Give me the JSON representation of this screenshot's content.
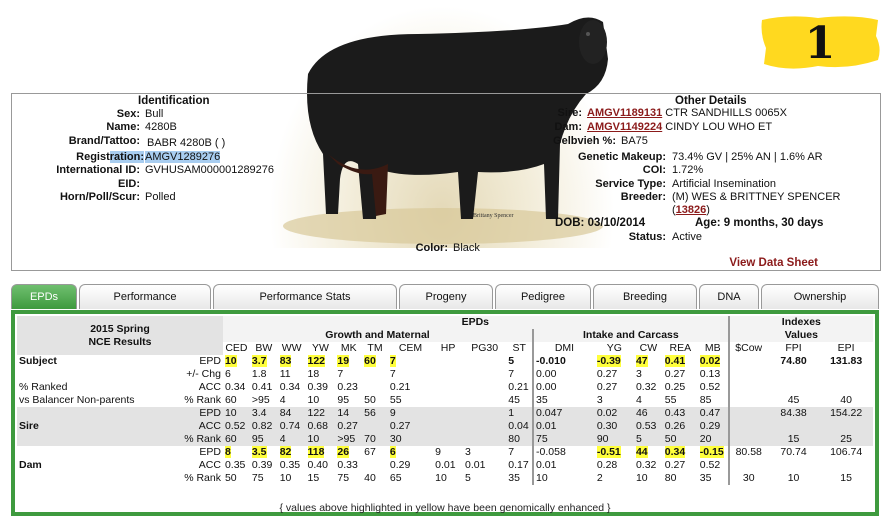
{
  "badge": {
    "number": "1"
  },
  "identification": {
    "title": "Identification",
    "fields": [
      {
        "label": "Sex:",
        "value": "Bull"
      },
      {
        "label": "Name:",
        "value": "4280B"
      },
      {
        "label": "Brand/Tattoo:",
        "value": "BABR 4280B ( )"
      },
      {
        "label_a": "Regist",
        "label_b": "ration:",
        "value": "AMGV1289276"
      },
      {
        "label": "International ID:",
        "value": "GVHUSAM000001289276"
      },
      {
        "label": "EID:",
        "value": ""
      },
      {
        "label": "Horn/Poll/Scur:",
        "value": "Polled"
      }
    ],
    "color_label": "Color:",
    "color_value": "Black"
  },
  "photo": {
    "credit": "Brittany Spencer"
  },
  "details": {
    "title": "Other Details",
    "sire_label": "Sire:",
    "sire_id": "AMGV1189131",
    "sire_name": "CTR SANDHILLS 0065X",
    "dam_label": "Dam:",
    "dam_id": "AMGV1149224",
    "dam_name": "CINDY LOU WHO ET",
    "gelbvieh_label": "Gelbvieh %:",
    "gelbvieh_value": "BA75",
    "genetic_label": "Genetic Makeup:",
    "genetic_value": "73.4% GV | 25% AN | 1.6% AR",
    "coi_label": "COI:",
    "coi_value": "1.72%",
    "service_label": "Service Type:",
    "service_value": "Artificial Insemination",
    "breeder_label": "Breeder:",
    "breeder_value": "(M) WES & BRITTNEY SPENCER",
    "breeder_id_open": "(",
    "breeder_id": "13826",
    "breeder_id_close": ")",
    "dob": "DOB: 03/10/2014",
    "age": "Age: 9 months, 30 days",
    "status_label": "Status:",
    "status_value": "Active",
    "view_sheet": "View Data Sheet"
  },
  "tabs": [
    "EPDs",
    "Performance",
    "Performance Stats",
    "Progeny",
    "Pedigree",
    "Breeding",
    "DNA",
    "Ownership"
  ],
  "epd": {
    "title_line1": "2015 Spring",
    "title_line2": "NCE Results",
    "group_epds": "EPDs",
    "group_growth": "Growth and Maternal",
    "group_intake": "Intake and Carcass",
    "group_indexes_1": "Indexes",
    "group_indexes_2": "Values",
    "cols": [
      "CED",
      "BW",
      "WW",
      "YW",
      "MK",
      "TM",
      "CEM",
      "HP",
      "PG30",
      "ST",
      "DMI",
      "YG",
      "CW",
      "REA",
      "MB",
      "$Cow",
      "FPI",
      "EPI"
    ],
    "row_labels": [
      "EPD",
      "+/- Chg",
      "ACC",
      "% Rank"
    ],
    "subject_label": "Subject",
    "subject_sub1": "% Ranked",
    "subject_sub2": "vs Balancer Non-parents",
    "sire_label": "Sire",
    "dam_label": "Dam",
    "footer": "{ values above highlighted in yellow have been genomically enhanced }"
  }
}
